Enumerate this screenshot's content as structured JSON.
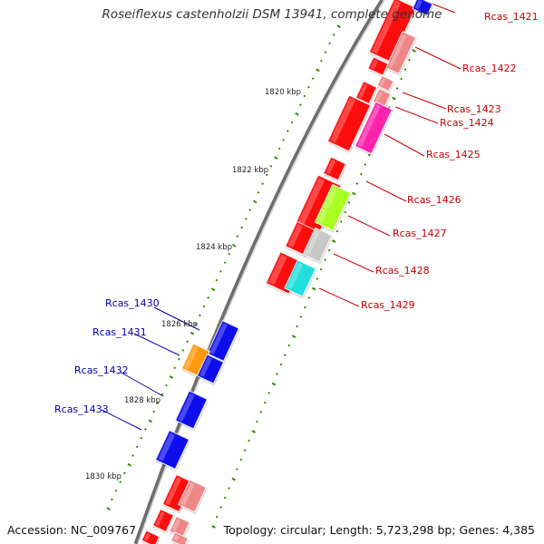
{
  "title": "Roseiflexus castenholzii DSM 13941, complete genome",
  "footer": {
    "accession": "Accession: NC_009767",
    "summary": "Topology: circular; Length: 5,723,298 bp; Genes: 4,385"
  },
  "colors": {
    "forward_label": "#cc0000",
    "reverse_label": "#0000aa",
    "tick": "#2e8b00",
    "backbone": "#6e6e6e"
  },
  "kbp_labels": [
    "1820 kbp",
    "1822 kbp",
    "1824 kbp",
    "1826 kbp",
    "1828 kbp",
    "1830 kbp"
  ],
  "gene_labels_right": [
    "Rcas_1421",
    "Rcas_1422",
    "Rcas_1423",
    "Rcas_1424",
    "Rcas_1425",
    "Rcas_1426",
    "Rcas_1427",
    "Rcas_1428",
    "Rcas_1429"
  ],
  "gene_labels_left": [
    "Rcas_1430",
    "Rcas_1431",
    "Rcas_1432",
    "Rcas_1433"
  ]
}
